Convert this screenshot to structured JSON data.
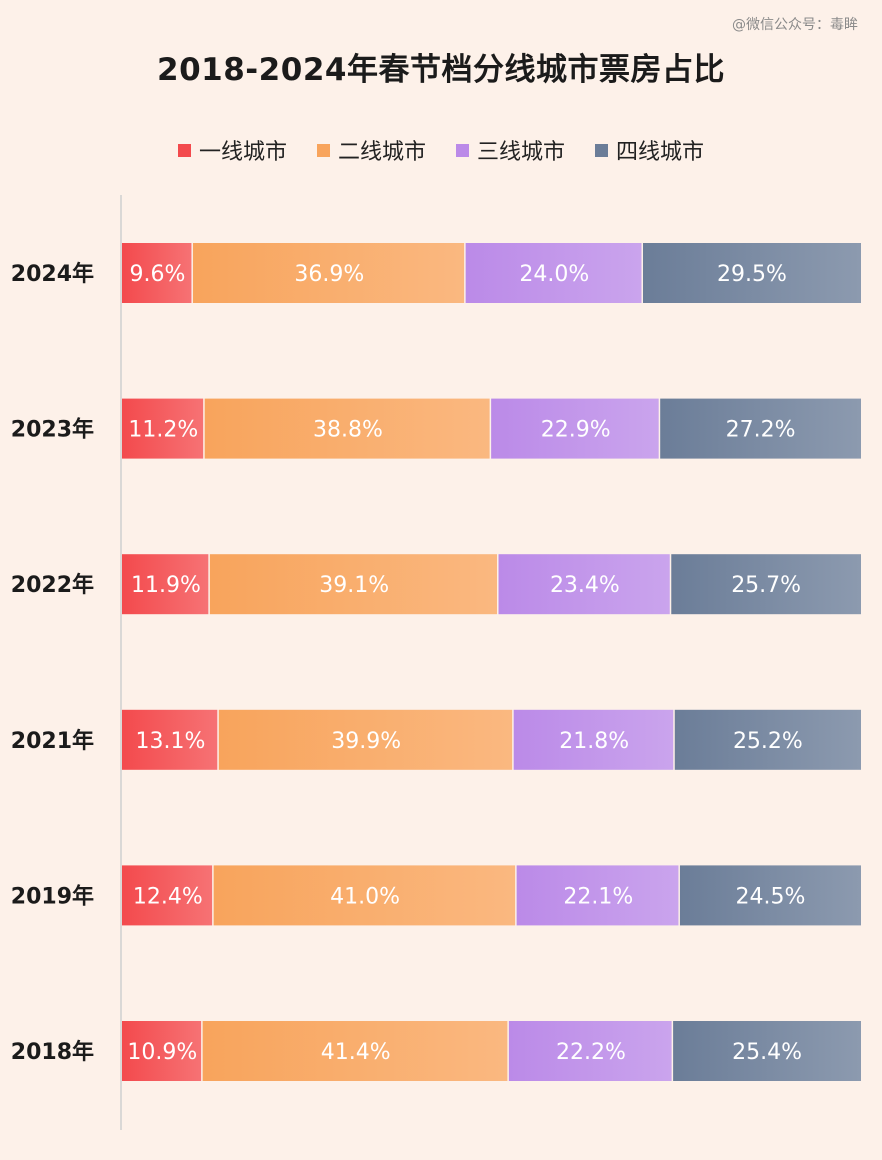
{
  "watermark": "@微信公众号：毒眸",
  "chart_data": {
    "type": "bar",
    "orientation": "horizontal",
    "stacked": true,
    "title": "2018-2024年春节档分线城市票房占比",
    "legend_position": "top",
    "categories": [
      "2024年",
      "2023年",
      "2022年",
      "2021年",
      "2019年",
      "2018年"
    ],
    "series": [
      {
        "name": "一线城市",
        "color": "#f34a4d",
        "values": [
          9.6,
          11.2,
          11.9,
          13.1,
          12.4,
          10.9
        ],
        "labels": [
          "9.6%",
          "11.2%",
          "11.9%",
          "13.1%",
          "12.4%",
          "10.9%"
        ]
      },
      {
        "name": "二线城市",
        "color": "#f8a45c",
        "values": [
          36.9,
          38.8,
          39.1,
          39.9,
          41.0,
          41.4
        ],
        "labels": [
          "36.9%",
          "38.8%",
          "39.1%",
          "39.9%",
          "41.0%",
          "41.4%"
        ]
      },
      {
        "name": "三线城市",
        "color": "#bb8ae8",
        "values": [
          24.0,
          22.9,
          23.4,
          21.8,
          22.1,
          22.2
        ],
        "labels": [
          "24.0%",
          "22.9%",
          "23.4%",
          "21.8%",
          "22.1%",
          "22.2%"
        ]
      },
      {
        "name": "四线城市",
        "color": "#6b7d98",
        "values": [
          29.5,
          27.2,
          25.7,
          25.2,
          24.5,
          25.4
        ],
        "labels": [
          "29.5%",
          "27.2%",
          "25.7%",
          "25.2%",
          "24.5%",
          "25.4%"
        ]
      }
    ],
    "xlim": [
      0,
      100
    ],
    "grid": false
  }
}
